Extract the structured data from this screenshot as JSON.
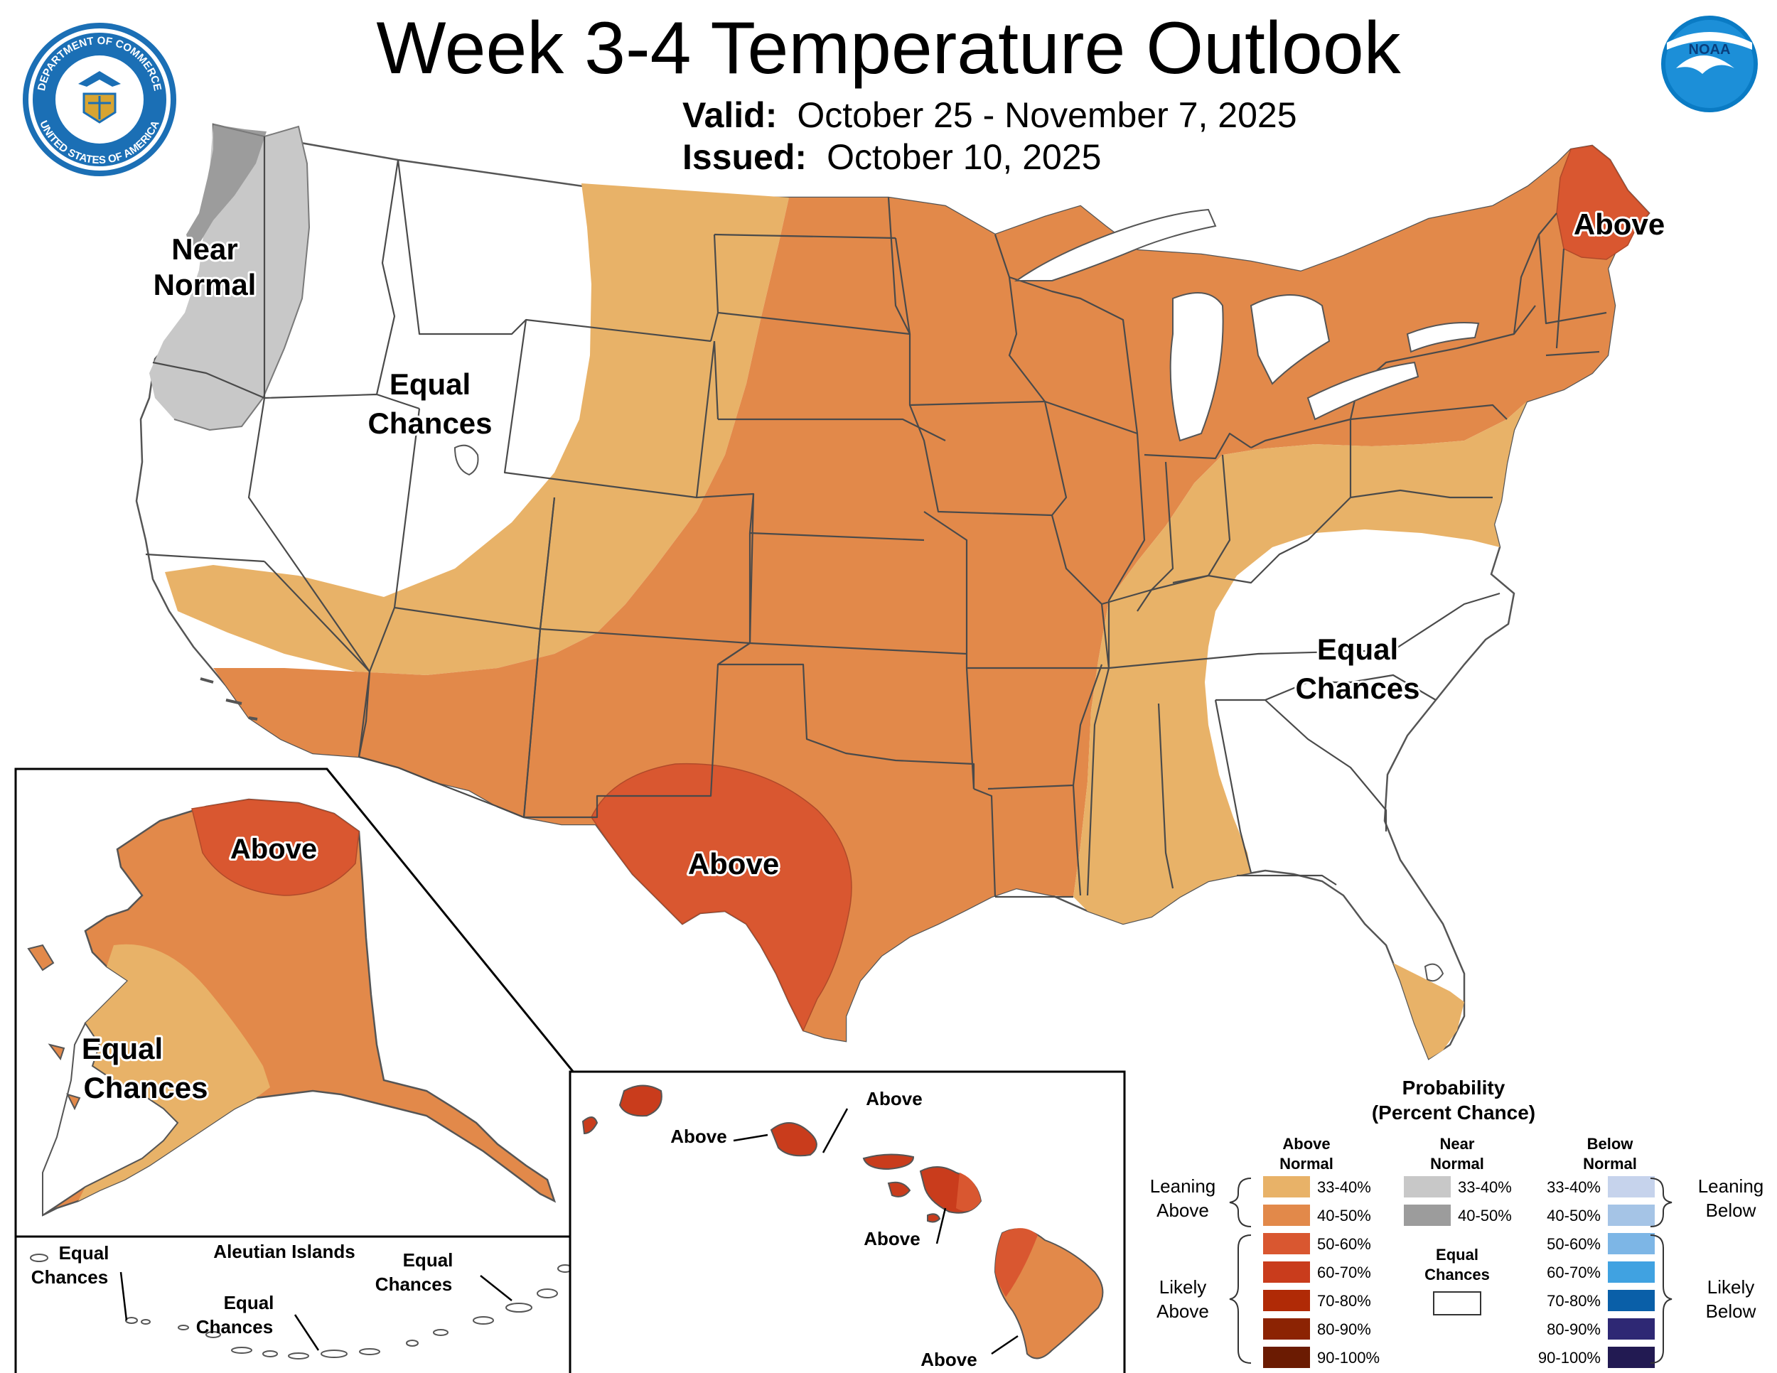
{
  "header": {
    "title": "Week 3-4 Temperature Outlook",
    "valid_label": "Valid:",
    "valid_value": "October 25 - November 7, 2025",
    "issued_label": "Issued:",
    "issued_value": "October 10, 2025"
  },
  "logos": {
    "commerce_seal_top": "DEPARTMENT OF COMMERCE",
    "commerce_seal_bottom": "UNITED STATES OF AMERICA",
    "noaa": "NOAA"
  },
  "conus_labels": {
    "near_normal": [
      "Near",
      "Normal"
    ],
    "equal_chances_west": [
      "Equal",
      "Chances"
    ],
    "equal_chances_east": [
      "Equal",
      "Chances"
    ],
    "above_maine": "Above",
    "above_texas": "Above"
  },
  "alaska_labels": {
    "above": "Above",
    "equal_chances": [
      "Equal",
      "Chances"
    ]
  },
  "aleutian_labels": {
    "title": "Aleutian Islands",
    "equal_chances_1": [
      "Equal",
      "Chances"
    ],
    "equal_chances_2": [
      "Equal",
      "Chances"
    ],
    "equal_chances_3": [
      "Equal",
      "Chances"
    ]
  },
  "hawaii_labels": {
    "above_1": "Above",
    "above_2": "Above",
    "above_3": "Above",
    "above_4": "Above"
  },
  "legend": {
    "title": "Probability",
    "subtitle": "(Percent Chance)",
    "above_header": [
      "Above",
      "Normal"
    ],
    "near_header": [
      "Near",
      "Normal"
    ],
    "below_header": [
      "Below",
      "Normal"
    ],
    "leaning_above": [
      "Leaning",
      "Above"
    ],
    "likely_above": [
      "Likely",
      "Above"
    ],
    "leaning_below": [
      "Leaning",
      "Below"
    ],
    "likely_below": [
      "Likely",
      "Below"
    ],
    "equal_chances": [
      "Equal",
      "Chances"
    ],
    "above_bins": [
      {
        "label": "33-40%",
        "color": "#e8b268"
      },
      {
        "label": "40-50%",
        "color": "#e2894a"
      },
      {
        "label": "50-60%",
        "color": "#d95730"
      },
      {
        "label": "60-70%",
        "color": "#c93c1c"
      },
      {
        "label": "70-80%",
        "color": "#b02a06"
      },
      {
        "label": "80-90%",
        "color": "#8c2303"
      },
      {
        "label": "90-100%",
        "color": "#6b1b02"
      }
    ],
    "near_bins": [
      {
        "label": "33-40%",
        "color": "#c8c8c8"
      },
      {
        "label": "40-50%",
        "color": "#9c9c9c"
      }
    ],
    "below_bins": [
      {
        "label": "33-40%",
        "color": "#c6d3ec"
      },
      {
        "label": "40-50%",
        "color": "#a5c4e6"
      },
      {
        "label": "50-60%",
        "color": "#7db6e6"
      },
      {
        "label": "60-70%",
        "color": "#40a2e1"
      },
      {
        "label": "70-80%",
        "color": "#0a5fa8"
      },
      {
        "label": "80-90%",
        "color": "#2e2874"
      },
      {
        "label": "90-100%",
        "color": "#221a52"
      }
    ]
  },
  "colors": {
    "boundary": "#4a4a4a",
    "above_33_40": "#e8b268",
    "above_40_50": "#e2894a",
    "above_50_60": "#d95730",
    "above_60_70": "#c93c1c",
    "near_33_40": "#c8c8c8",
    "near_40_50": "#9c9c9c",
    "noaa_blue": "#0a7bc4"
  }
}
